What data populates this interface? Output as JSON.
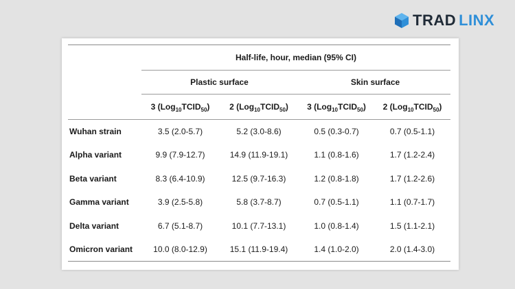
{
  "logo": {
    "part1": "TRAD",
    "part2": "LINX",
    "brand_dark": "#1f2a36",
    "brand_blue": "#2f8fd8"
  },
  "table": {
    "super_header": "Half-life, hour, median (95% CI)",
    "groups": [
      "Plastic surface",
      "Skin surface"
    ],
    "subheaders": [
      {
        "prefix": "3 (Log",
        "sub1": "10",
        "mid": "TCID",
        "sub2": "50",
        "suffix": ")"
      },
      {
        "prefix": "2 (Log",
        "sub1": "10",
        "mid": "TCID",
        "sub2": "50",
        "suffix": ")"
      },
      {
        "prefix": "3 (Log",
        "sub1": "10",
        "mid": "TCID",
        "sub2": "50",
        "suffix": ")"
      },
      {
        "prefix": "2 (Log",
        "sub1": "10",
        "mid": "TCID",
        "sub2": "50",
        "suffix": ")"
      }
    ],
    "rows": [
      {
        "label": "Wuhan strain",
        "cells": [
          "3.5 (2.0-5.7)",
          "5.2 (3.0-8.6)",
          "0.5 (0.3-0.7)",
          "0.7 (0.5-1.1)"
        ]
      },
      {
        "label": "Alpha variant",
        "cells": [
          "9.9 (7.9-12.7)",
          "14.9 (11.9-19.1)",
          "1.1 (0.8-1.6)",
          "1.7 (1.2-2.4)"
        ]
      },
      {
        "label": "Beta variant",
        "cells": [
          "8.3 (6.4-10.9)",
          "12.5 (9.7-16.3)",
          "1.2 (0.8-1.8)",
          "1.7 (1.2-2.6)"
        ]
      },
      {
        "label": "Gamma variant",
        "cells": [
          "3.9 (2.5-5.8)",
          "5.8 (3.7-8.7)",
          "0.7 (0.5-1.1)",
          "1.1 (0.7-1.7)"
        ]
      },
      {
        "label": "Delta variant",
        "cells": [
          "6.7 (5.1-8.7)",
          "10.1 (7.7-13.1)",
          "1.0 (0.8-1.4)",
          "1.5 (1.1-2.1)"
        ]
      },
      {
        "label": "Omicron variant",
        "cells": [
          "10.0 (8.0-12.9)",
          "15.1 (11.9-19.4)",
          "1.4 (1.0-2.0)",
          "2.0 (1.4-3.0)"
        ]
      }
    ]
  }
}
